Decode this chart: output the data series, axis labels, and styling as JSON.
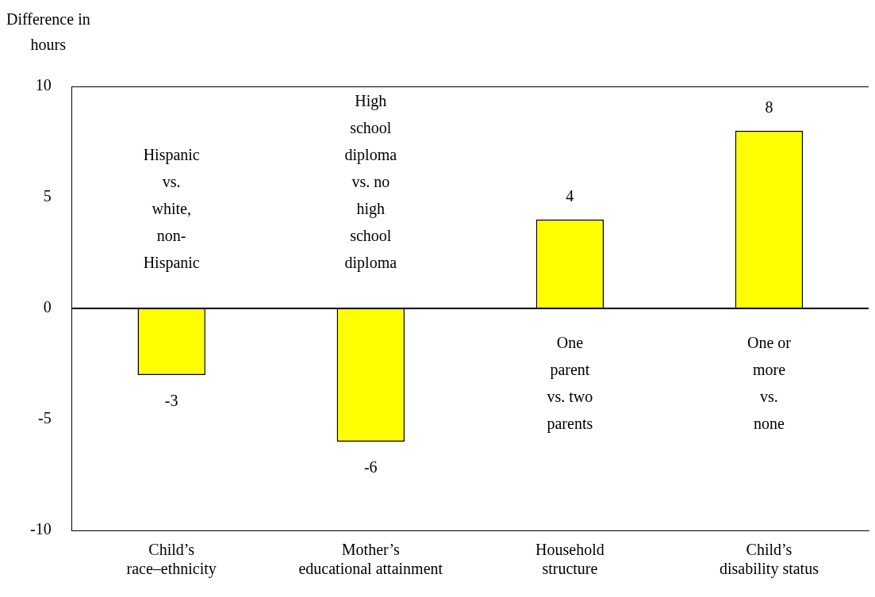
{
  "chart_data": {
    "type": "bar",
    "ylabel": "Difference in\nhours",
    "categories": [
      "Child’s\nrace–ethnicity",
      "Mother’s\neducational attainment",
      "Household\nstructure",
      "Child’s\ndisability status"
    ],
    "values": [
      -3,
      -6,
      4,
      8
    ],
    "color": "#ffff00",
    "data_labels": true,
    "ylim": [
      -10,
      10
    ],
    "yticks": [
      -10,
      -5,
      0,
      5,
      10
    ],
    "grid": false,
    "legend": false,
    "ref_lines": [
      {
        "axis": "y",
        "value": 0,
        "color": "#000000"
      }
    ],
    "annotations": [
      "Hispanic\nvs.\nwhite,\nnon-\nHispanic",
      "High\nschool\ndiploma\nvs. no\nhigh\nschool\ndiploma",
      "One\nparent\nvs. two\nparents",
      "One or\nmore\nvs.\nnone"
    ]
  }
}
